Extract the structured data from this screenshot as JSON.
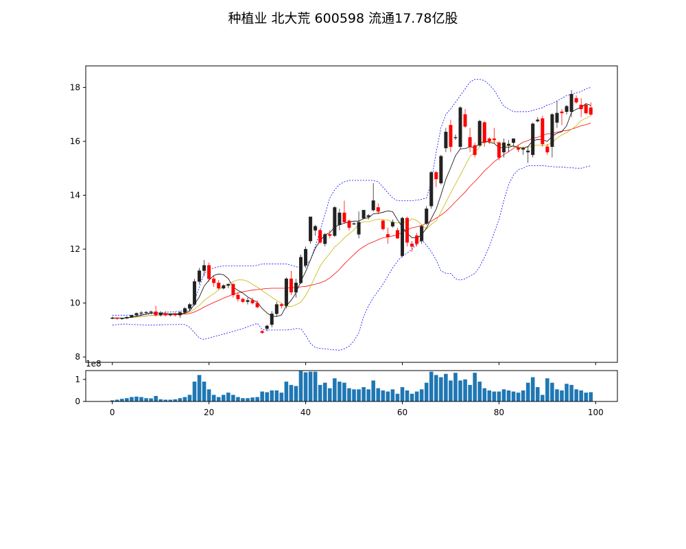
{
  "title": "种植业 北大荒 600598 流通17.78亿股",
  "chart_data": [
    {
      "type": "candlestick",
      "panel": "price",
      "xlim": [
        -5.5,
        104.5
      ],
      "ylim": [
        7.8,
        18.8
      ],
      "y_ticks": [
        8,
        10,
        12,
        14,
        16,
        18
      ],
      "grid": false,
      "colors": {
        "up": "#000000",
        "down": "#ff0000",
        "ma5": "#000000",
        "ma10": "#c8b400",
        "ma20": "#ff0000",
        "boll": "#0000ff"
      },
      "ohlc": [
        [
          9.45,
          9.5,
          9.4,
          9.45
        ],
        [
          9.45,
          9.48,
          9.38,
          9.42
        ],
        [
          9.42,
          9.46,
          9.38,
          9.44
        ],
        [
          9.44,
          9.5,
          9.4,
          9.48
        ],
        [
          9.48,
          9.56,
          9.45,
          9.55
        ],
        [
          9.55,
          9.65,
          9.5,
          9.62
        ],
        [
          9.62,
          9.7,
          9.55,
          9.64
        ],
        [
          9.64,
          9.7,
          9.58,
          9.66
        ],
        [
          9.66,
          9.72,
          9.6,
          9.68
        ],
        [
          9.68,
          9.9,
          9.5,
          9.55
        ],
        [
          9.55,
          9.7,
          9.5,
          9.62
        ],
        [
          9.62,
          9.7,
          9.5,
          9.55
        ],
        [
          9.55,
          9.62,
          9.5,
          9.58
        ],
        [
          9.58,
          9.65,
          9.5,
          9.55
        ],
        [
          9.55,
          9.7,
          9.45,
          9.65
        ],
        [
          9.65,
          9.85,
          9.6,
          9.8
        ],
        [
          9.8,
          10.0,
          9.7,
          9.95
        ],
        [
          9.95,
          10.9,
          9.9,
          10.8
        ],
        [
          10.8,
          11.3,
          10.7,
          11.2
        ],
        [
          11.2,
          11.6,
          11.0,
          11.4
        ],
        [
          11.4,
          11.5,
          10.8,
          10.9
        ],
        [
          10.9,
          11.0,
          10.6,
          10.75
        ],
        [
          10.75,
          10.85,
          10.5,
          10.55
        ],
        [
          10.55,
          10.7,
          10.5,
          10.65
        ],
        [
          10.65,
          10.7,
          10.55,
          10.7
        ],
        [
          10.7,
          10.75,
          10.2,
          10.3
        ],
        [
          10.3,
          10.4,
          10.05,
          10.15
        ],
        [
          10.15,
          10.2,
          10.0,
          10.05
        ],
        [
          10.05,
          10.2,
          9.95,
          10.1
        ],
        [
          10.1,
          10.2,
          9.95,
          10.0
        ],
        [
          10.0,
          10.1,
          9.8,
          9.85
        ],
        [
          8.95,
          9.0,
          8.85,
          8.9
        ],
        [
          9.05,
          9.2,
          8.95,
          9.15
        ],
        [
          9.2,
          9.7,
          9.1,
          9.6
        ],
        [
          9.6,
          10.05,
          9.5,
          9.95
        ],
        [
          9.95,
          10.0,
          9.8,
          9.9
        ],
        [
          9.9,
          10.95,
          9.8,
          10.9
        ],
        [
          10.9,
          11.2,
          10.3,
          10.4
        ],
        [
          10.4,
          10.9,
          10.2,
          10.75
        ],
        [
          10.75,
          11.8,
          10.7,
          11.7
        ],
        [
          11.4,
          12.1,
          11.3,
          12.0
        ],
        [
          12.3,
          13.2,
          12.2,
          13.2
        ],
        [
          12.7,
          12.9,
          12.5,
          12.85
        ],
        [
          12.7,
          12.75,
          12.2,
          12.25
        ],
        [
          12.2,
          12.6,
          12.1,
          12.55
        ],
        [
          12.55,
          12.7,
          12.4,
          12.5
        ],
        [
          12.5,
          13.6,
          12.45,
          13.55
        ],
        [
          12.9,
          13.5,
          12.7,
          13.35
        ],
        [
          13.35,
          13.8,
          12.95,
          13.0
        ],
        [
          13.05,
          13.1,
          12.7,
          12.8
        ],
        [
          12.95,
          13.0,
          12.9,
          12.95
        ],
        [
          12.55,
          13.4,
          12.4,
          13.0
        ],
        [
          13.15,
          13.4,
          13.1,
          13.45
        ],
        [
          13.2,
          13.3,
          13.1,
          13.25
        ],
        [
          13.45,
          14.45,
          13.4,
          13.8
        ],
        [
          13.55,
          13.7,
          13.3,
          13.4
        ],
        [
          13.05,
          13.1,
          12.7,
          12.75
        ],
        [
          12.55,
          12.8,
          12.2,
          12.45
        ],
        [
          12.85,
          13.1,
          12.8,
          13.0
        ],
        [
          12.7,
          12.8,
          12.4,
          12.4
        ],
        [
          11.75,
          13.2,
          11.7,
          13.15
        ],
        [
          13.15,
          13.2,
          12.1,
          12.25
        ],
        [
          12.2,
          12.3,
          11.9,
          12.1
        ],
        [
          12.5,
          12.6,
          12.1,
          12.2
        ],
        [
          12.3,
          12.9,
          12.2,
          12.85
        ],
        [
          12.95,
          13.6,
          12.9,
          13.5
        ],
        [
          13.6,
          14.9,
          13.5,
          14.85
        ],
        [
          14.85,
          14.9,
          14.3,
          14.6
        ],
        [
          14.45,
          15.5,
          14.4,
          15.45
        ],
        [
          15.75,
          16.5,
          15.6,
          16.35
        ],
        [
          16.6,
          16.8,
          15.6,
          15.8
        ],
        [
          16.15,
          16.25,
          16.05,
          16.15
        ],
        [
          15.8,
          17.3,
          15.7,
          17.25
        ],
        [
          17.0,
          17.2,
          16.5,
          16.55
        ],
        [
          16.15,
          16.5,
          15.6,
          15.8
        ],
        [
          15.85,
          15.95,
          15.4,
          15.5
        ],
        [
          15.85,
          16.8,
          15.8,
          16.75
        ],
        [
          16.7,
          16.75,
          15.8,
          15.95
        ],
        [
          16.1,
          16.15,
          15.9,
          16.0
        ],
        [
          16.1,
          16.5,
          15.9,
          16.05
        ],
        [
          15.95,
          16.0,
          15.3,
          15.4
        ],
        [
          15.6,
          16.1,
          15.4,
          15.95
        ],
        [
          15.85,
          16.05,
          15.6,
          15.9
        ],
        [
          15.95,
          16.05,
          15.8,
          16.1
        ],
        [
          15.75,
          15.85,
          15.6,
          15.7
        ],
        [
          15.7,
          15.8,
          15.5,
          15.75
        ],
        [
          15.6,
          15.8,
          15.2,
          15.65
        ],
        [
          15.5,
          16.7,
          15.4,
          16.65
        ],
        [
          16.75,
          16.9,
          16.7,
          16.8
        ],
        [
          16.85,
          16.95,
          15.8,
          15.9
        ],
        [
          15.8,
          15.9,
          15.5,
          15.6
        ],
        [
          15.8,
          17.05,
          15.4,
          17.0
        ],
        [
          16.7,
          17.5,
          16.5,
          17.05
        ],
        [
          17.1,
          17.2,
          16.6,
          17.05
        ],
        [
          17.1,
          17.35,
          17.0,
          17.3
        ],
        [
          17.1,
          17.9,
          16.9,
          17.75
        ],
        [
          17.6,
          17.7,
          17.4,
          17.45
        ],
        [
          17.35,
          17.6,
          16.9,
          17.2
        ],
        [
          17.35,
          17.4,
          17.0,
          17.05
        ],
        [
          17.25,
          17.45,
          16.95,
          17.0
        ]
      ],
      "ma5": [
        9.45,
        9.44,
        9.44,
        9.45,
        9.47,
        9.51,
        9.55,
        9.59,
        9.63,
        9.63,
        9.63,
        9.61,
        9.6,
        9.6,
        9.59,
        9.63,
        9.71,
        9.95,
        10.23,
        10.63,
        10.85,
        11.02,
        11.08,
        11.05,
        10.91,
        10.59,
        10.47,
        10.37,
        10.23,
        10.12,
        10.03,
        9.8,
        9.63,
        9.51,
        9.5,
        9.56,
        9.9,
        10.1,
        10.38,
        10.81,
        11.17,
        11.61,
        12.04,
        12.31,
        12.53,
        12.61,
        12.82,
        12.91,
        12.96,
        13.01,
        13.04,
        13.04,
        13.14,
        13.16,
        13.31,
        13.33,
        13.37,
        13.42,
        13.39,
        13.09,
        12.82,
        12.58,
        12.43,
        12.41,
        12.53,
        12.78,
        13.14,
        13.48,
        14.01,
        14.59,
        15.02,
        15.47,
        15.72,
        15.73,
        15.8,
        15.77,
        15.91,
        16.02,
        15.96,
        15.93,
        15.76,
        15.78,
        15.78,
        15.83,
        15.76,
        15.74,
        15.81,
        16.02,
        16.07,
        16.06,
        16.0,
        16.19,
        16.3,
        16.36,
        16.58,
        17.08,
        17.19,
        17.26,
        17.4,
        17.33
      ],
      "ma10": [
        9.45,
        9.44,
        9.44,
        9.45,
        9.47,
        9.48,
        9.5,
        9.52,
        9.54,
        9.55,
        9.57,
        9.59,
        9.61,
        9.61,
        9.61,
        9.62,
        9.66,
        9.78,
        9.91,
        10.1,
        10.23,
        10.35,
        10.49,
        10.62,
        10.72,
        10.8,
        10.86,
        10.86,
        10.81,
        10.69,
        10.59,
        10.46,
        10.34,
        10.21,
        10.1,
        9.99,
        9.88,
        9.87,
        9.94,
        10.03,
        10.28,
        10.61,
        11.0,
        11.37,
        11.63,
        11.84,
        12.08,
        12.23,
        12.42,
        12.57,
        12.72,
        12.93,
        13.02,
        13.01,
        13.07,
        13.11,
        13.09,
        13.08,
        13.0,
        12.97,
        13.0,
        13.0,
        13.13,
        13.06,
        12.91,
        12.75,
        12.92,
        13.05,
        13.38,
        13.73,
        14.08,
        14.42,
        14.75,
        15.1,
        15.44,
        15.6,
        15.79,
        15.99,
        15.99,
        15.99,
        15.94,
        15.83,
        15.84,
        15.82,
        15.79,
        15.77,
        15.79,
        15.84,
        15.86,
        15.86,
        15.86,
        15.96,
        16.12,
        16.24,
        16.32,
        16.45,
        16.58,
        16.77,
        16.86,
        16.95
      ],
      "ma20": [
        9.45,
        9.44,
        9.44,
        9.45,
        9.47,
        9.48,
        9.5,
        9.52,
        9.54,
        9.55,
        9.56,
        9.56,
        9.57,
        9.57,
        9.58,
        9.59,
        9.61,
        9.67,
        9.75,
        9.85,
        9.94,
        10.02,
        10.1,
        10.18,
        10.25,
        10.32,
        10.38,
        10.42,
        10.45,
        10.48,
        10.5,
        10.52,
        10.54,
        10.55,
        10.55,
        10.55,
        10.55,
        10.57,
        10.58,
        10.6,
        10.62,
        10.66,
        10.7,
        10.75,
        10.82,
        10.93,
        11.08,
        11.25,
        11.45,
        11.63,
        11.8,
        11.97,
        12.09,
        12.2,
        12.27,
        12.35,
        12.42,
        12.45,
        12.49,
        12.53,
        12.62,
        12.72,
        12.79,
        12.83,
        12.88,
        12.96,
        13.04,
        13.15,
        13.26,
        13.4,
        13.57,
        13.76,
        13.94,
        14.12,
        14.33,
        14.51,
        14.7,
        14.91,
        15.07,
        15.24,
        15.38,
        15.5,
        15.62,
        15.74,
        15.86,
        15.97,
        16.03,
        16.11,
        16.15,
        16.22,
        16.28,
        16.29,
        16.34,
        16.38,
        16.4,
        16.45,
        16.51,
        16.58,
        16.62,
        16.68
      ],
      "boll_upper": [
        9.55,
        9.55,
        9.55,
        9.55,
        9.55,
        9.56,
        9.57,
        9.58,
        9.6,
        9.62,
        9.64,
        9.66,
        9.67,
        9.68,
        9.7,
        9.72,
        9.75,
        10.1,
        10.6,
        11.1,
        11.25,
        11.3,
        11.35,
        11.38,
        11.38,
        11.38,
        11.38,
        11.38,
        11.38,
        11.38,
        11.4,
        11.45,
        11.45,
        11.45,
        11.45,
        11.45,
        11.45,
        11.4,
        11.35,
        11.3,
        11.4,
        11.6,
        12.1,
        12.7,
        13.3,
        13.9,
        14.2,
        14.4,
        14.5,
        14.55,
        14.55,
        14.55,
        14.55,
        14.55,
        14.55,
        14.5,
        14.3,
        14.1,
        13.9,
        13.8,
        13.8,
        13.8,
        13.8,
        13.82,
        13.85,
        13.9,
        14.5,
        15.6,
        16.5,
        17.0,
        17.2,
        17.45,
        17.7,
        17.95,
        18.2,
        18.3,
        18.3,
        18.25,
        18.1,
        17.9,
        17.6,
        17.3,
        17.2,
        17.1,
        17.1,
        17.1,
        17.1,
        17.15,
        17.2,
        17.25,
        17.35,
        17.4,
        17.5,
        17.6,
        17.7,
        17.75,
        17.8,
        17.85,
        17.95,
        18.0
      ],
      "boll_lower": [
        9.18,
        9.2,
        9.22,
        9.22,
        9.2,
        9.2,
        9.19,
        9.18,
        9.18,
        9.18,
        9.19,
        9.2,
        9.2,
        9.2,
        9.21,
        9.2,
        9.1,
        8.9,
        8.7,
        8.65,
        8.7,
        8.75,
        8.8,
        8.85,
        8.9,
        8.95,
        9.0,
        9.05,
        9.12,
        9.18,
        9.25,
        9.02,
        9.0,
        9.0,
        9.0,
        9.0,
        9.0,
        9.02,
        9.05,
        9.05,
        8.8,
        8.5,
        8.35,
        8.32,
        8.3,
        8.28,
        8.26,
        8.25,
        8.3,
        8.4,
        8.6,
        8.9,
        9.5,
        9.9,
        10.2,
        10.45,
        10.7,
        11.0,
        11.3,
        11.55,
        11.75,
        11.85,
        12.0,
        12.2,
        12.35,
        12.15,
        11.9,
        11.6,
        11.2,
        11.1,
        11.1,
        10.9,
        10.85,
        10.9,
        11.0,
        11.1,
        11.35,
        11.7,
        12.1,
        12.6,
        13.1,
        13.8,
        14.4,
        14.75,
        14.95,
        15.0,
        15.1,
        15.1,
        15.1,
        15.1,
        15.08,
        15.06,
        15.05,
        15.05,
        15.03,
        15.02,
        15.0,
        15.0,
        15.05,
        15.1
      ]
    },
    {
      "type": "bar",
      "panel": "volume",
      "color": "#1f77b4",
      "xlim": [
        -5.5,
        104.5
      ],
      "ylim": [
        0,
        140000000
      ],
      "y_ticks": [
        0,
        1,
        2
      ],
      "y_tick_labels": [
        "0",
        "1",
        ""
      ],
      "x_ticks": [
        0,
        20,
        40,
        60,
        80,
        100
      ],
      "offset_label": "1e8",
      "values": [
        0.05,
        0.08,
        0.12,
        0.15,
        0.2,
        0.22,
        0.2,
        0.15,
        0.14,
        0.25,
        0.1,
        0.08,
        0.08,
        0.1,
        0.15,
        0.2,
        0.3,
        0.9,
        1.2,
        0.9,
        0.55,
        0.3,
        0.2,
        0.3,
        0.4,
        0.3,
        0.2,
        0.15,
        0.15,
        0.18,
        0.2,
        0.45,
        0.42,
        0.5,
        0.5,
        0.4,
        0.9,
        0.75,
        0.7,
        1.38,
        1.32,
        1.35,
        1.35,
        0.75,
        0.85,
        0.6,
        1.05,
        0.9,
        0.85,
        0.6,
        0.55,
        0.55,
        0.65,
        0.55,
        0.95,
        0.6,
        0.5,
        0.45,
        0.55,
        0.35,
        0.65,
        0.5,
        0.35,
        0.45,
        0.55,
        0.85,
        1.35,
        1.2,
        1.1,
        1.25,
        0.95,
        1.3,
        0.95,
        1.0,
        0.75,
        1.3,
        0.9,
        0.6,
        0.5,
        0.45,
        0.45,
        0.55,
        0.5,
        0.45,
        0.4,
        0.5,
        0.85,
        1.1,
        0.65,
        0.3,
        1.05,
        0.85,
        0.55,
        0.5,
        0.8,
        0.75,
        0.55,
        0.5,
        0.4,
        0.42
      ]
    }
  ]
}
